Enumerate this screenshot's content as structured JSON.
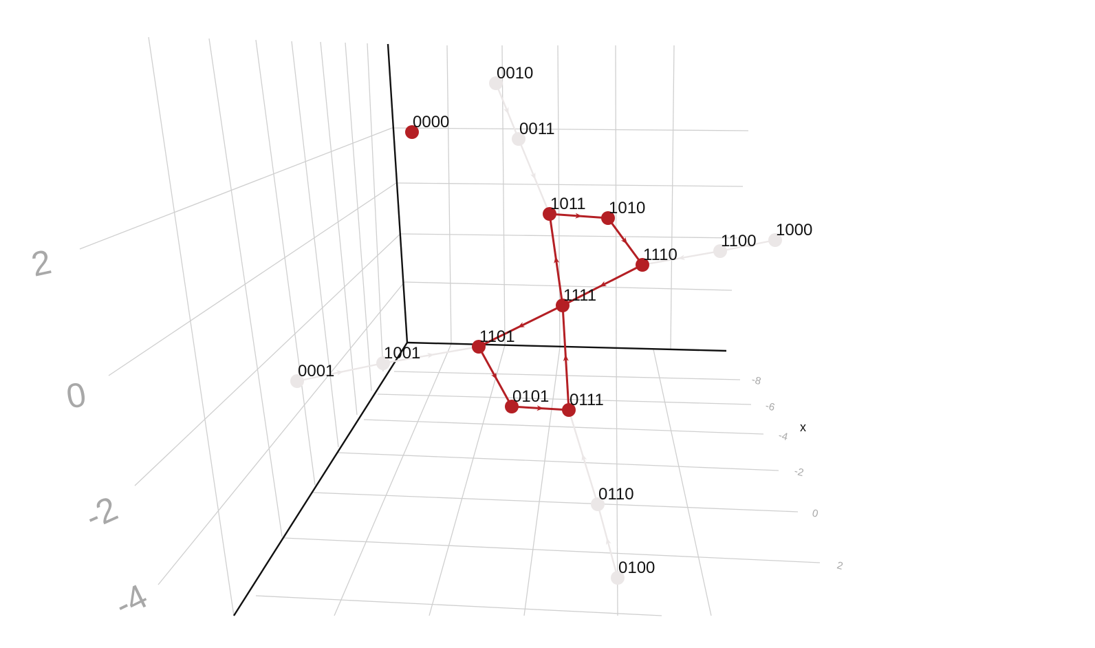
{
  "chart_data": {
    "type": "network-3d",
    "title": "",
    "x_axis": {
      "label": "x",
      "ticks": [
        "-8",
        "-6",
        "-4",
        "-2",
        "0",
        "2"
      ]
    },
    "z_axis": {
      "label": "",
      "ticks": [
        "2",
        "0",
        "-2",
        "-4"
      ]
    },
    "colors": {
      "highlight": "#b41f24",
      "background": "#ebe7e7"
    },
    "nodes": [
      {
        "id": "0000",
        "highlighted": true
      },
      {
        "id": "0001",
        "highlighted": false
      },
      {
        "id": "0010",
        "highlighted": false
      },
      {
        "id": "0011",
        "highlighted": false
      },
      {
        "id": "0100",
        "highlighted": false
      },
      {
        "id": "0101",
        "highlighted": true
      },
      {
        "id": "0110",
        "highlighted": false
      },
      {
        "id": "0111",
        "highlighted": true
      },
      {
        "id": "1000",
        "highlighted": false
      },
      {
        "id": "1001",
        "highlighted": false
      },
      {
        "id": "1010",
        "highlighted": true
      },
      {
        "id": "1011",
        "highlighted": true
      },
      {
        "id": "1100",
        "highlighted": false
      },
      {
        "id": "1101",
        "highlighted": true
      },
      {
        "id": "1110",
        "highlighted": true
      },
      {
        "id": "1111",
        "highlighted": true
      }
    ],
    "edges": [
      {
        "from": "0010",
        "to": "0011",
        "highlighted": false
      },
      {
        "from": "0011",
        "to": "1011",
        "highlighted": false
      },
      {
        "from": "0001",
        "to": "1001",
        "highlighted": false
      },
      {
        "from": "1001",
        "to": "1101",
        "highlighted": false
      },
      {
        "from": "0100",
        "to": "0110",
        "highlighted": false
      },
      {
        "from": "0110",
        "to": "0111",
        "highlighted": false
      },
      {
        "from": "1000",
        "to": "1100",
        "highlighted": false
      },
      {
        "from": "1100",
        "to": "1110",
        "highlighted": false
      },
      {
        "from": "1011",
        "to": "1010",
        "highlighted": true
      },
      {
        "from": "1010",
        "to": "1110",
        "highlighted": true
      },
      {
        "from": "1110",
        "to": "1111",
        "highlighted": true
      },
      {
        "from": "1111",
        "to": "1101",
        "highlighted": true
      },
      {
        "from": "1101",
        "to": "0101",
        "highlighted": true
      },
      {
        "from": "0101",
        "to": "0111",
        "highlighted": true
      },
      {
        "from": "0111",
        "to": "1111",
        "highlighted": true
      },
      {
        "from": "1111",
        "to": "1011",
        "highlighted": true
      }
    ]
  }
}
